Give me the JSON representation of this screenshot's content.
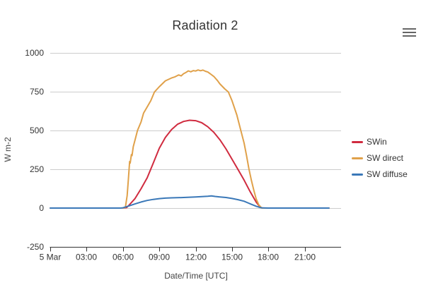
{
  "style": {
    "background": "#ffffff",
    "grid_color": "#cccccc",
    "axis_color": "#333333",
    "text_color": "#333333",
    "title_color": "#333333",
    "menu_icon_color": "#666666"
  },
  "chart_data": {
    "type": "line",
    "title": "Radiation 2",
    "xlabel": "Date/Time [UTC]",
    "ylabel": "W m-2",
    "xlim_hours": [
      0,
      24
    ],
    "ylim": [
      -250,
      1000
    ],
    "yticks": [
      -250,
      0,
      250,
      500,
      750,
      1000
    ],
    "xticks": [
      {
        "hours": 0,
        "label": "5 Mar"
      },
      {
        "hours": 3,
        "label": "03:00"
      },
      {
        "hours": 6,
        "label": "06:00"
      },
      {
        "hours": 9,
        "label": "09:00"
      },
      {
        "hours": 12,
        "label": "12:00"
      },
      {
        "hours": 15,
        "label": "15:00"
      },
      {
        "hours": 18,
        "label": "18:00"
      },
      {
        "hours": 21,
        "label": "21:00"
      }
    ],
    "grid": true,
    "legend_position": "right",
    "series": [
      {
        "name": "SWin",
        "color": "#d02b3f",
        "points": [
          [
            0,
            0
          ],
          [
            1,
            0
          ],
          [
            2,
            0
          ],
          [
            3,
            0
          ],
          [
            4,
            0
          ],
          [
            5,
            0
          ],
          [
            6,
            0
          ],
          [
            6.3,
            3
          ],
          [
            6.5,
            18
          ],
          [
            7,
            62
          ],
          [
            7.5,
            125
          ],
          [
            8,
            195
          ],
          [
            8.5,
            290
          ],
          [
            9,
            385
          ],
          [
            9.5,
            455
          ],
          [
            10,
            505
          ],
          [
            10.5,
            540
          ],
          [
            11,
            558
          ],
          [
            11.5,
            566
          ],
          [
            12,
            563
          ],
          [
            12.5,
            550
          ],
          [
            13,
            524
          ],
          [
            13.5,
            488
          ],
          [
            14,
            440
          ],
          [
            14.5,
            382
          ],
          [
            15,
            315
          ],
          [
            15.5,
            248
          ],
          [
            16,
            180
          ],
          [
            16.5,
            105
          ],
          [
            17,
            38
          ],
          [
            17.3,
            8
          ],
          [
            17.5,
            0
          ],
          [
            18,
            0
          ],
          [
            19,
            0
          ],
          [
            20,
            0
          ],
          [
            21,
            0
          ],
          [
            22,
            0
          ],
          [
            23,
            0
          ]
        ]
      },
      {
        "name": "SW direct",
        "color": "#e0a14a",
        "points": [
          [
            0,
            0
          ],
          [
            1,
            0
          ],
          [
            2,
            0
          ],
          [
            3,
            0
          ],
          [
            4,
            0
          ],
          [
            5,
            0
          ],
          [
            6,
            0
          ],
          [
            6.2,
            5
          ],
          [
            6.35,
            80
          ],
          [
            6.45,
            190
          ],
          [
            6.55,
            300
          ],
          [
            6.6,
            290
          ],
          [
            6.7,
            345
          ],
          [
            6.75,
            338
          ],
          [
            6.85,
            395
          ],
          [
            7,
            440
          ],
          [
            7.2,
            500
          ],
          [
            7.5,
            556
          ],
          [
            7.7,
            612
          ],
          [
            8,
            652
          ],
          [
            8.3,
            692
          ],
          [
            8.6,
            748
          ],
          [
            9,
            782
          ],
          [
            9.5,
            820
          ],
          [
            10,
            838
          ],
          [
            10.3,
            846
          ],
          [
            10.6,
            858
          ],
          [
            10.8,
            852
          ],
          [
            11,
            866
          ],
          [
            11.2,
            874
          ],
          [
            11.4,
            884
          ],
          [
            11.6,
            878
          ],
          [
            11.8,
            886
          ],
          [
            12,
            883
          ],
          [
            12.2,
            890
          ],
          [
            12.4,
            885
          ],
          [
            12.6,
            889
          ],
          [
            12.8,
            882
          ],
          [
            13,
            877
          ],
          [
            13.2,
            866
          ],
          [
            13.5,
            848
          ],
          [
            13.8,
            822
          ],
          [
            14,
            800
          ],
          [
            14.4,
            768
          ],
          [
            14.7,
            748
          ],
          [
            15,
            692
          ],
          [
            15.4,
            600
          ],
          [
            15.7,
            508
          ],
          [
            16,
            418
          ],
          [
            16.2,
            338
          ],
          [
            16.4,
            252
          ],
          [
            16.6,
            178
          ],
          [
            16.8,
            115
          ],
          [
            17,
            58
          ],
          [
            17.2,
            22
          ],
          [
            17.45,
            0
          ],
          [
            18,
            0
          ],
          [
            19,
            0
          ],
          [
            20,
            0
          ],
          [
            21,
            0
          ],
          [
            22,
            0
          ],
          [
            23,
            0
          ]
        ]
      },
      {
        "name": "SW diffuse",
        "color": "#3a78b8",
        "points": [
          [
            0,
            0
          ],
          [
            1,
            0
          ],
          [
            2,
            0
          ],
          [
            3,
            0
          ],
          [
            4,
            0
          ],
          [
            5,
            0
          ],
          [
            5.8,
            0
          ],
          [
            6,
            2
          ],
          [
            6.5,
            14
          ],
          [
            7,
            27
          ],
          [
            7.5,
            39
          ],
          [
            8,
            49
          ],
          [
            8.5,
            56
          ],
          [
            9,
            61
          ],
          [
            9.5,
            64
          ],
          [
            10,
            66
          ],
          [
            10.5,
            67
          ],
          [
            11,
            68
          ],
          [
            11.5,
            70
          ],
          [
            12,
            72
          ],
          [
            12.5,
            74
          ],
          [
            13,
            76
          ],
          [
            13.3,
            78
          ],
          [
            13.6,
            75
          ],
          [
            14,
            72
          ],
          [
            14.5,
            68
          ],
          [
            15,
            62
          ],
          [
            15.5,
            54
          ],
          [
            16,
            44
          ],
          [
            16.3,
            34
          ],
          [
            16.6,
            24
          ],
          [
            17,
            12
          ],
          [
            17.3,
            4
          ],
          [
            17.5,
            1
          ],
          [
            18,
            0
          ],
          [
            19,
            0
          ],
          [
            20,
            0
          ],
          [
            21,
            0
          ],
          [
            22,
            0
          ],
          [
            23,
            0
          ]
        ]
      }
    ]
  }
}
